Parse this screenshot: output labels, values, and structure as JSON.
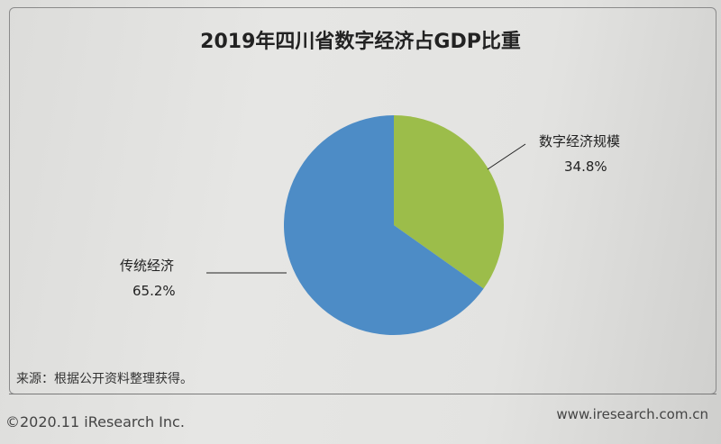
{
  "chart_data": {
    "type": "pie",
    "title": "2019年四川省数字经济占GDP比重",
    "slices": [
      {
        "label": "数字经济规模",
        "value": 34.8,
        "display": "34.8%",
        "color": "#9cbd4a"
      },
      {
        "label": "传统经济",
        "value": 65.2,
        "display": "65.2%",
        "color": "#4d8cc6"
      }
    ]
  },
  "source": "来源：根据公开资料整理获得。",
  "copyright": "©2020.11 iResearch Inc.",
  "website": "www.iresearch.com.cn"
}
